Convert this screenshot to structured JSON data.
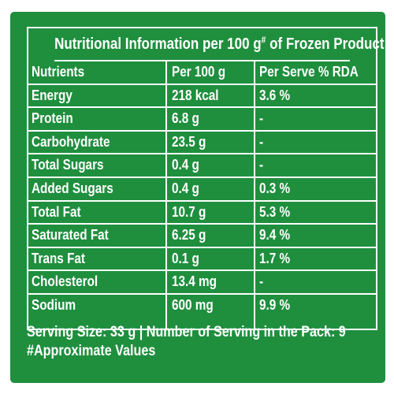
{
  "title": {
    "text": "Nutritional Information  per 100 g",
    "sup": "#",
    "suffix": " of Frozen Product"
  },
  "headers": {
    "nutrients": "Nutrients",
    "per100g": "Per 100 g",
    "per_serve_rda": "Per Serve % RDA"
  },
  "rows": [
    {
      "nutrient": "Energy",
      "per100g": "218 kcal",
      "rda": "3.6 %"
    },
    {
      "nutrient": "Protein",
      "per100g": "6.8 g",
      "rda": "-"
    },
    {
      "nutrient": "Carbohydrate",
      "per100g": "23.5 g",
      "rda": "-"
    },
    {
      "nutrient": "Total Sugars",
      "per100g": "0.4 g",
      "rda": "-"
    },
    {
      "nutrient": "Added Sugars",
      "per100g": "0.4 g",
      "rda": "0.3 %"
    },
    {
      "nutrient": "Total Fat",
      "per100g": "10.7 g",
      "rda": "5.3 %"
    },
    {
      "nutrient": "Saturated Fat",
      "per100g": "6.25 g",
      "rda": "9.4 %"
    },
    {
      "nutrient": "Trans Fat",
      "per100g": "0.1 g",
      "rda": "1.7 %"
    },
    {
      "nutrient": "Cholesterol",
      "per100g": "13.4 mg",
      "rda": "-"
    },
    {
      "nutrient": "Sodium",
      "per100g": "600 mg",
      "rda": "9.9 %"
    }
  ],
  "footer": {
    "serving": "Serving Size: 33 g | Number of Serving in the Pack: 9",
    "note": "#Approximate Values"
  },
  "colors": {
    "background": "#1f8f3e",
    "text": "#ffffff"
  }
}
